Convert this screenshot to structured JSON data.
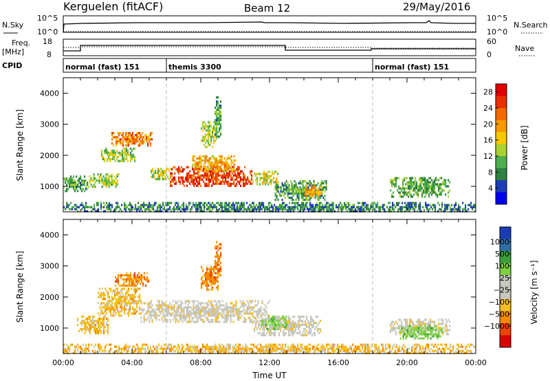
{
  "header": {
    "station": "Kerguelen (fitACF)",
    "beam": "Beam 12",
    "date": "29/May/2016"
  },
  "panels": {
    "nsky": {
      "left_label": "N.Sky",
      "right_label": "N.Search",
      "left_ticks": [
        "10^5",
        "10^0"
      ],
      "right_ticks": [
        "10^5",
        "10^0"
      ]
    },
    "freq": {
      "left_label_1": "Freq.",
      "left_label_2": "[MHz]",
      "right_label": "Nave",
      "left_ticks": [
        "18",
        "8"
      ],
      "right_ticks": [
        "60",
        "0"
      ]
    },
    "cpid": {
      "label": "CPID",
      "modes": [
        {
          "name": "normal (fast) 151",
          "start_h": 0,
          "end_h": 6
        },
        {
          "name": "themis 3300",
          "start_h": 6,
          "end_h": 18
        },
        {
          "name": "normal (fast) 151",
          "start_h": 18,
          "end_h": 24
        }
      ]
    }
  },
  "colors": {
    "power": [
      "#0000ee",
      "#1e3cb4",
      "#2f8040",
      "#4fae4f",
      "#a8d035",
      "#f5c800",
      "#f59a00",
      "#f06a00",
      "#e83000",
      "#e00000"
    ],
    "velocity": [
      "#dd0000",
      "#ee4400",
      "#f58a00",
      "#f5be20",
      "#c8c8c0",
      "#c8c8c0",
      "#7ed040",
      "#3aa03a",
      "#2f6fa8",
      "#1a3cb4"
    ]
  },
  "chart_data": [
    {
      "type": "heatmap",
      "title": "",
      "xlabel": "",
      "ylabel": "Slant Range [km]",
      "xlim": [
        0,
        24
      ],
      "ylim": [
        180,
        4500
      ],
      "x_ticks": [
        "00:00",
        "04:00",
        "08:00",
        "12:00",
        "16:00",
        "20:00",
        "00:00"
      ],
      "y_ticks": [
        1000,
        2000,
        3000,
        4000
      ],
      "colorbar": {
        "label": "Power [dB]",
        "ticks": [
          4,
          8,
          12,
          16,
          20,
          24,
          28
        ],
        "range": [
          0,
          30
        ]
      },
      "regions": [
        {
          "t0": 0.0,
          "t1": 1.5,
          "r0": 880,
          "r1": 1350,
          "v": 9
        },
        {
          "t0": 1.5,
          "t1": 3.2,
          "r0": 1000,
          "r1": 1420,
          "v": 13
        },
        {
          "t0": 2.2,
          "t1": 4.2,
          "r0": 1800,
          "r1": 2250,
          "v": 12
        },
        {
          "t0": 2.8,
          "t1": 5.2,
          "r0": 2350,
          "r1": 2750,
          "v": 22
        },
        {
          "t0": 5.0,
          "t1": 6.2,
          "r0": 1250,
          "r1": 1600,
          "v": 14
        },
        {
          "t0": 6.2,
          "t1": 11.0,
          "r0": 1050,
          "r1": 1650,
          "v": 26
        },
        {
          "t0": 7.5,
          "t1": 10.0,
          "r0": 1500,
          "r1": 2000,
          "v": 18
        },
        {
          "t0": 8.0,
          "t1": 8.9,
          "r0": 2300,
          "r1": 3100,
          "v": 13
        },
        {
          "t0": 8.8,
          "t1": 9.2,
          "r0": 2600,
          "r1": 3900,
          "v": 9
        },
        {
          "t0": 11.0,
          "t1": 12.5,
          "r0": 1100,
          "r1": 1500,
          "v": 15
        },
        {
          "t0": 12.3,
          "t1": 15.3,
          "r0": 600,
          "r1": 1200,
          "v": 9
        },
        {
          "t0": 14.0,
          "t1": 15.0,
          "r0": 700,
          "r1": 1050,
          "v": 20
        },
        {
          "t0": 19.0,
          "t1": 22.5,
          "r0": 700,
          "r1": 1300,
          "v": 10
        },
        {
          "t0": 0.0,
          "t1": 24.0,
          "r0": 200,
          "r1": 500,
          "v": 7
        }
      ]
    },
    {
      "type": "heatmap",
      "title": "",
      "xlabel": "Time UT",
      "ylabel": "Slant Range [km]",
      "xlim": [
        0,
        24
      ],
      "ylim": [
        180,
        4500
      ],
      "x_ticks": [
        "00:00",
        "04:00",
        "08:00",
        "12:00",
        "16:00",
        "20:00",
        "00:00"
      ],
      "y_ticks": [
        1000,
        2000,
        3000,
        4000
      ],
      "colorbar": {
        "label": "Velocity [m s⁻¹]",
        "ticks": [
          "1000",
          "500",
          "100",
          "25",
          "−25",
          "−100",
          "−500",
          "−1000"
        ]
      },
      "regions": [
        {
          "t0": 0.8,
          "t1": 2.6,
          "r0": 850,
          "r1": 1400,
          "v": 3
        },
        {
          "t0": 2.0,
          "t1": 4.5,
          "r0": 1400,
          "r1": 2300,
          "v": 3
        },
        {
          "t0": 3.0,
          "t1": 5.0,
          "r0": 2400,
          "r1": 2800,
          "v": 2
        },
        {
          "t0": 4.5,
          "t1": 12.0,
          "r0": 1200,
          "r1": 1900,
          "v": 4
        },
        {
          "t0": 8.0,
          "t1": 9.0,
          "r0": 2250,
          "r1": 3000,
          "v": 2
        },
        {
          "t0": 8.8,
          "t1": 9.2,
          "r0": 2700,
          "r1": 3800,
          "v": 2
        },
        {
          "t0": 11.0,
          "t1": 15.0,
          "r0": 800,
          "r1": 1400,
          "v": 4
        },
        {
          "t0": 11.5,
          "t1": 13.0,
          "r0": 1000,
          "r1": 1400,
          "v": 6
        },
        {
          "t0": 19.0,
          "t1": 22.5,
          "r0": 800,
          "r1": 1300,
          "v": 4
        },
        {
          "t0": 19.5,
          "t1": 22.0,
          "r0": 700,
          "r1": 1100,
          "v": 6
        },
        {
          "t0": 0.0,
          "t1": 24.0,
          "r0": 200,
          "r1": 500,
          "v": 3
        }
      ]
    }
  ]
}
